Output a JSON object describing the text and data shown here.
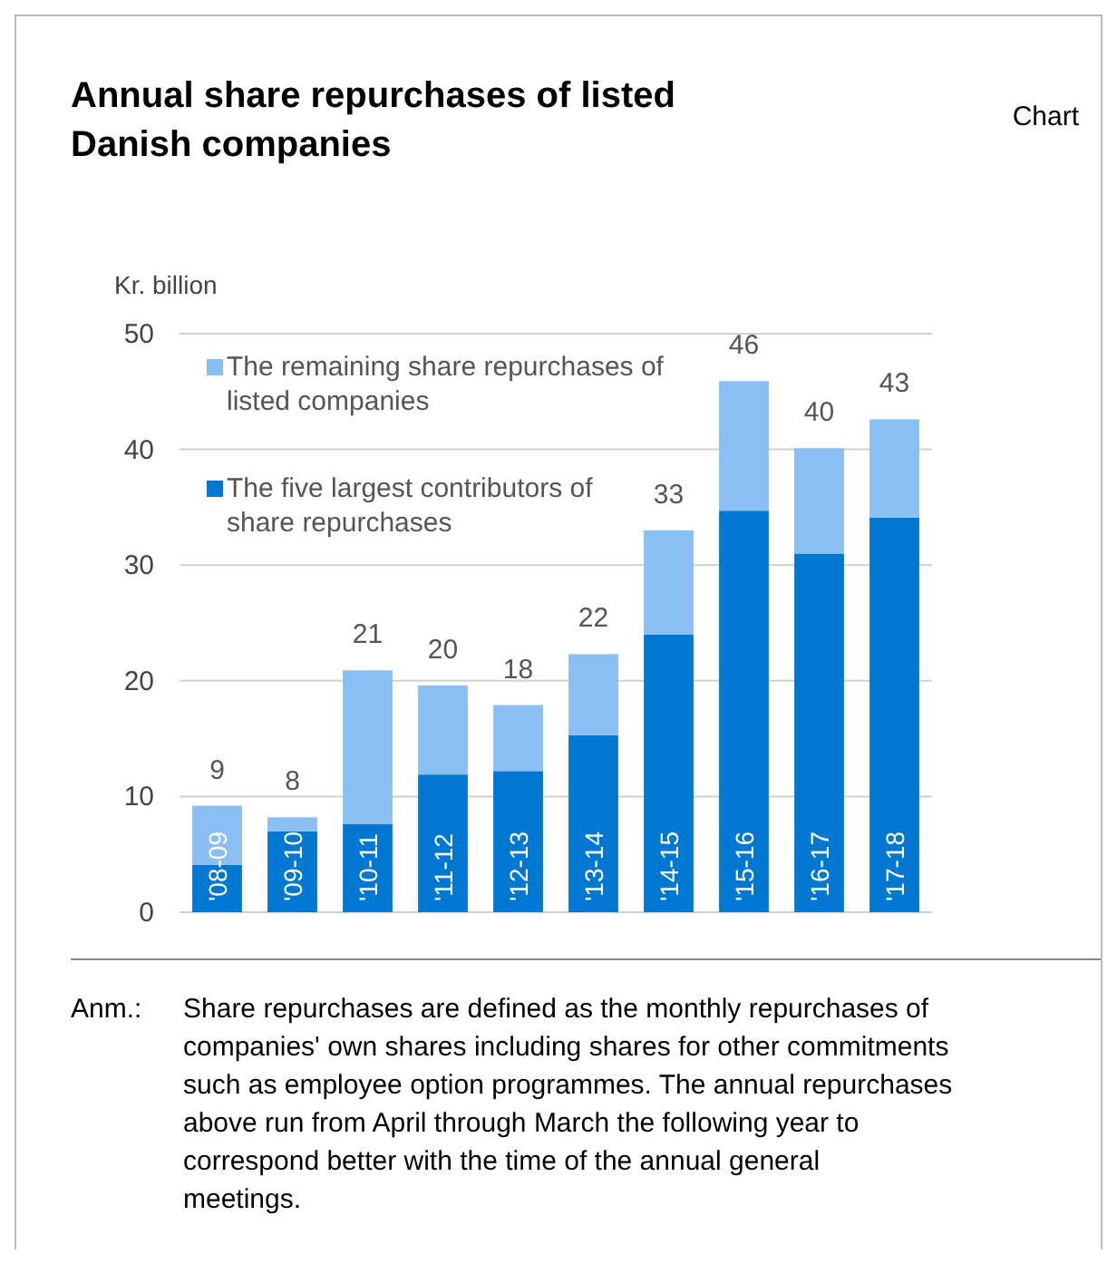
{
  "chart_data": {
    "type": "bar",
    "stacked": true,
    "title": "Annual share repurchases of listed Danish companies",
    "ylabel": "Kr. billion",
    "categories": [
      "'08-09",
      "'09-10",
      "'10-11",
      "'11-12",
      "'12-13",
      "'13-14",
      "'14-15",
      "'15-16",
      "'16-17",
      "'17-18"
    ],
    "series": [
      {
        "name": "The five largest contributors of share repurchases",
        "color": "#0078d2",
        "values": [
          4.1,
          7.0,
          7.6,
          11.9,
          12.2,
          15.3,
          24.0,
          34.7,
          31.0,
          34.1
        ]
      },
      {
        "name": "The remaining share repurchases of listed companies",
        "color": "#89bff2",
        "values": [
          5.1,
          1.2,
          13.3,
          7.7,
          5.7,
          7.0,
          9.0,
          11.2,
          9.1,
          8.5
        ]
      }
    ],
    "totals": [
      "9",
      "8",
      "21",
      "20",
      "18",
      "22",
      "33",
      "46",
      "40",
      "43"
    ],
    "ylim": [
      0,
      50
    ],
    "yticks": [
      0,
      10,
      20,
      30,
      40,
      50
    ],
    "grid": "y",
    "legend": "top left",
    "annotations": [
      "Chart",
      "Anm.:  Share repurchases are defined as the monthly repurchases of companies' own shares including shares for other commitments such as employee option programmes. The annual repurchases above run from April through March the following year to correspond better with the time of the annual general meetings."
    ]
  }
}
